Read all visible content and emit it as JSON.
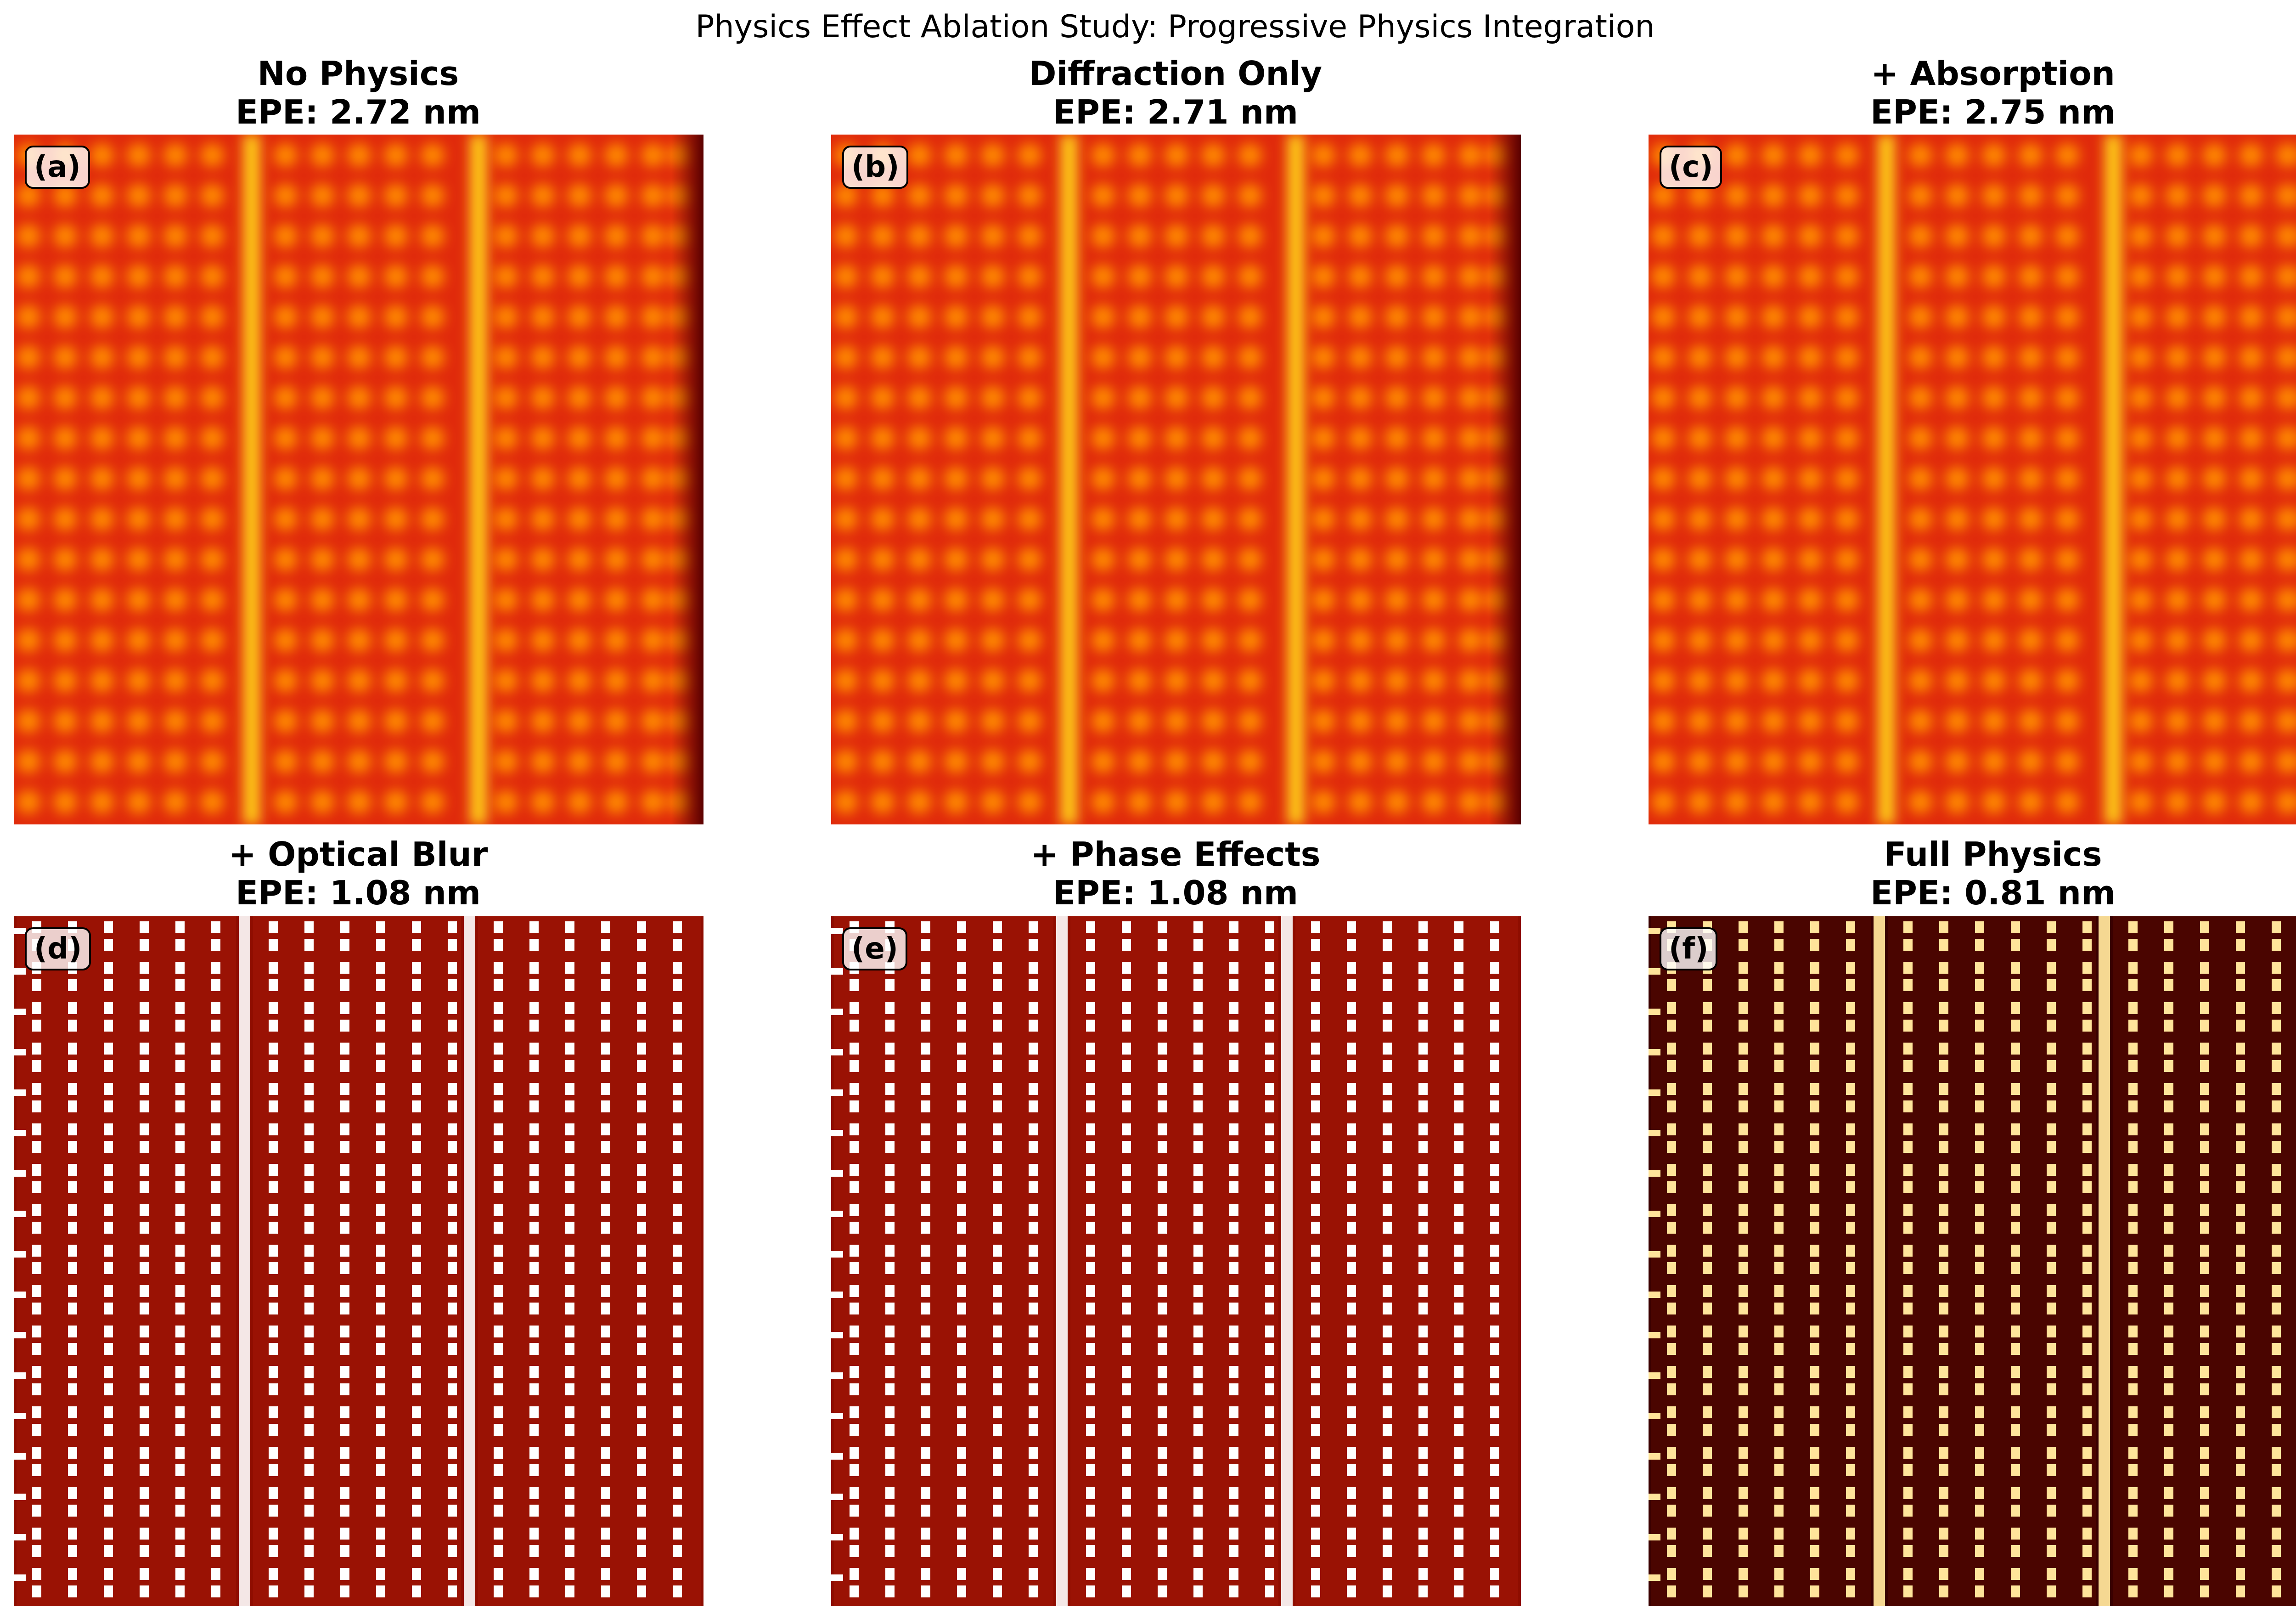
{
  "figure": {
    "suptitle": "Physics Effect Ablation Study: Progressive Physics Integration"
  },
  "chart_data": [
    {
      "type": "heatmap",
      "panel": "(a)",
      "title": "No Physics",
      "metric_label": "EPE: 2.72 nm",
      "epe_nm": 2.72,
      "style": "blurred"
    },
    {
      "type": "heatmap",
      "panel": "(b)",
      "title": "Diffraction Only",
      "metric_label": "EPE: 2.71 nm",
      "epe_nm": 2.71,
      "style": "blurred"
    },
    {
      "type": "heatmap",
      "panel": "(c)",
      "title": "+ Absorption",
      "metric_label": "EPE: 2.75 nm",
      "epe_nm": 2.75,
      "style": "blurred"
    },
    {
      "type": "heatmap",
      "panel": "(d)",
      "title": "+ Optical Blur",
      "metric_label": "EPE: 1.08 nm",
      "epe_nm": 1.08,
      "style": "sharp"
    },
    {
      "type": "heatmap",
      "panel": "(e)",
      "title": "+ Phase Effects",
      "metric_label": "EPE: 1.08 nm",
      "epe_nm": 1.08,
      "style": "sharp"
    },
    {
      "type": "heatmap",
      "panel": "(f)",
      "title": "Full Physics",
      "metric_label": "EPE: 0.81 nm",
      "epe_nm": 0.81,
      "style": "dark"
    }
  ],
  "colors": {
    "blurred_bg": "#e02a0b",
    "blurred_dot": "#ff8a00",
    "blurred_line": "#ffd21a",
    "sharp_bg": "#8f0d00",
    "sharp_dot": "#ffffff",
    "dark_bg": "#3a0000",
    "dark_dot": "#ffe49a"
  }
}
